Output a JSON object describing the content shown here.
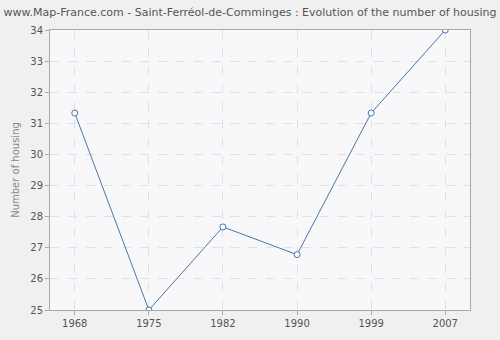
{
  "chart_data": {
    "type": "line",
    "title": "www.Map-France.com - Saint-Ferréol-de-Comminges : Evolution of the number of housing",
    "y_label": "Number of housing",
    "categories": [
      "1968",
      "1975",
      "1982",
      "1990",
      "1999",
      "2007"
    ],
    "values": [
      31.33,
      25,
      27.67,
      26.78,
      31.33,
      34
    ],
    "color": "#4a76a8",
    "marker": "circle-open",
    "ylim": [
      25,
      34
    ],
    "yticks": [
      25,
      26,
      27,
      28,
      29,
      30,
      31,
      32,
      33,
      34
    ],
    "grid": true
  }
}
